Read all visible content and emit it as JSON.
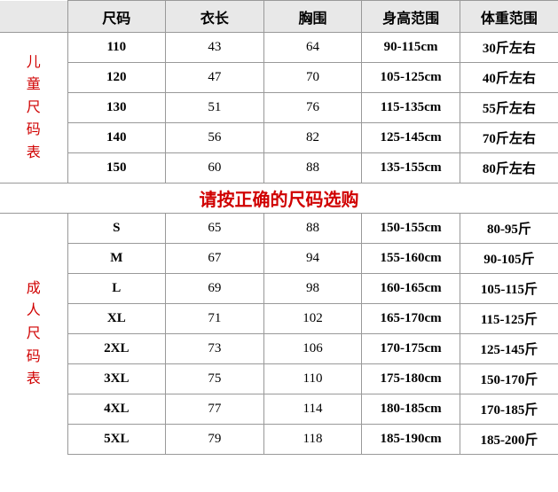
{
  "headers": [
    "尺码",
    "衣长",
    "胸围",
    "身高范围",
    "体重范围"
  ],
  "side_child": "儿童尺码表",
  "side_adult": "成人尺码表",
  "notice": "请按正确的尺码选购",
  "child_rows": [
    {
      "s": "110",
      "l": "43",
      "b": "64",
      "h": "90-115cm",
      "w": "30斤左右"
    },
    {
      "s": "120",
      "l": "47",
      "b": "70",
      "h": "105-125cm",
      "w": "40斤左右"
    },
    {
      "s": "130",
      "l": "51",
      "b": "76",
      "h": "115-135cm",
      "w": "55斤左右"
    },
    {
      "s": "140",
      "l": "56",
      "b": "82",
      "h": "125-145cm",
      "w": "70斤左右"
    },
    {
      "s": "150",
      "l": "60",
      "b": "88",
      "h": "135-155cm",
      "w": "80斤左右"
    }
  ],
  "adult_rows": [
    {
      "s": "S",
      "l": "65",
      "b": "88",
      "h": "150-155cm",
      "w": "80-95斤"
    },
    {
      "s": "M",
      "l": "67",
      "b": "94",
      "h": "155-160cm",
      "w": "90-105斤"
    },
    {
      "s": "L",
      "l": "69",
      "b": "98",
      "h": "160-165cm",
      "w": "105-115斤"
    },
    {
      "s": "XL",
      "l": "71",
      "b": "102",
      "h": "165-170cm",
      "w": "115-125斤"
    },
    {
      "s": "2XL",
      "l": "73",
      "b": "106",
      "h": "170-175cm",
      "w": "125-145斤"
    },
    {
      "s": "3XL",
      "l": "75",
      "b": "110",
      "h": "175-180cm",
      "w": "150-170斤"
    },
    {
      "s": "4XL",
      "l": "77",
      "b": "114",
      "h": "180-185cm",
      "w": "170-185斤"
    },
    {
      "s": "5XL",
      "l": "79",
      "b": "118",
      "h": "185-190cm",
      "w": "185-200斤"
    }
  ],
  "colors": {
    "header_bg": "#e8e8e8",
    "border": "#999999",
    "accent": "#d00000",
    "background": "#ffffff"
  }
}
